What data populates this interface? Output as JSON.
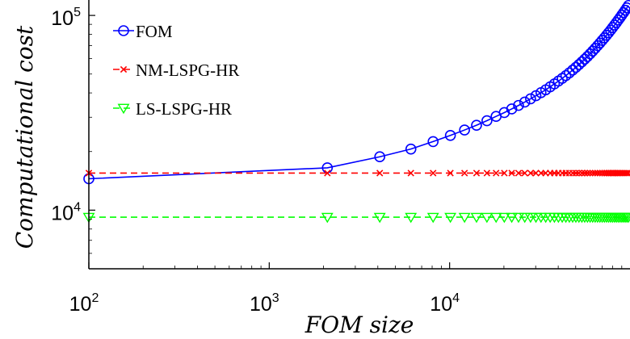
{
  "chart_data": {
    "type": "line",
    "xlabel": "FOM size",
    "ylabel": "Computational cost",
    "xscale": "log",
    "yscale": "log",
    "xlim": [
      100,
      100000
    ],
    "ylim": [
      5000,
      120000
    ],
    "x_ticks": [
      {
        "value": 100,
        "base": "10",
        "exp": "2"
      },
      {
        "value": 1000,
        "base": "10",
        "exp": "3"
      },
      {
        "value": 10000,
        "base": "10",
        "exp": "4"
      }
    ],
    "y_ticks": [
      {
        "value": 10000,
        "base": "10",
        "exp": "4"
      },
      {
        "value": 100000,
        "base": "10",
        "exp": "5"
      }
    ],
    "legend_position": "top-left",
    "series": [
      {
        "name": "FOM",
        "color": "#0000ff",
        "line": "solid",
        "marker": "circle",
        "x": [
          100,
          2100,
          4100,
          6100,
          8100,
          10100,
          12100,
          14100,
          16100,
          18100,
          20100,
          22100,
          24100,
          26100,
          28100,
          30100,
          32100,
          34100,
          36100,
          38100,
          40100,
          42100,
          44100,
          46100,
          48100,
          50100,
          52100,
          54100,
          56100,
          58100,
          60100,
          62100,
          64100,
          66100,
          68100,
          70100,
          72100,
          74100,
          76100,
          78100,
          80100,
          82100,
          84100,
          86100,
          88100,
          90100,
          92100,
          94100,
          96100,
          98100
        ],
        "y": [
          14500,
          16500,
          18800,
          20600,
          22500,
          24200,
          25800,
          27300,
          28800,
          30300,
          31700,
          33100,
          34500,
          35900,
          37300,
          38700,
          40100,
          41500,
          43000,
          44500,
          46000,
          47500,
          49100,
          50700,
          52400,
          54100,
          55900,
          57700,
          59600,
          61500,
          63500,
          65600,
          67700,
          69900,
          72100,
          74400,
          76700,
          79100,
          81500,
          84000,
          86600,
          89200,
          91900,
          94700,
          97500,
          100400,
          103300,
          106300,
          109400,
          112500
        ]
      },
      {
        "name": "NM-LSPG-HR",
        "color": "#ff0000",
        "line": "dashed",
        "marker": "x",
        "x": [
          100,
          2100,
          4100,
          6100,
          8100,
          10100,
          12100,
          14100,
          16100,
          18100,
          20100,
          22100,
          24100,
          26100,
          28100,
          30100,
          32100,
          34100,
          36100,
          38100,
          40100,
          42100,
          44100,
          46100,
          48100,
          50100,
          52100,
          54100,
          56100,
          58100,
          60100,
          62100,
          64100,
          66100,
          68100,
          70100,
          72100,
          74100,
          76100,
          78100,
          80100,
          82100,
          84100,
          86100,
          88100,
          90100,
          92100,
          94100,
          96100,
          98100
        ],
        "y": [
          15500,
          15500,
          15500,
          15500,
          15500,
          15500,
          15500,
          15500,
          15500,
          15500,
          15500,
          15500,
          15500,
          15500,
          15500,
          15500,
          15500,
          15500,
          15500,
          15500,
          15500,
          15500,
          15500,
          15500,
          15500,
          15500,
          15500,
          15500,
          15500,
          15500,
          15500,
          15500,
          15500,
          15500,
          15500,
          15500,
          15500,
          15500,
          15500,
          15500,
          15500,
          15500,
          15500,
          15500,
          15500,
          15500,
          15500,
          15500,
          15500,
          15500
        ]
      },
      {
        "name": "LS-LSPG-HR",
        "color": "#00ff00",
        "line": "dashed",
        "marker": "triangle-down",
        "x": [
          100,
          2100,
          4100,
          6100,
          8100,
          10100,
          12100,
          14100,
          16100,
          18100,
          20100,
          22100,
          24100,
          26100,
          28100,
          30100,
          32100,
          34100,
          36100,
          38100,
          40100,
          42100,
          44100,
          46100,
          48100,
          50100,
          52100,
          54100,
          56100,
          58100,
          60100,
          62100,
          64100,
          66100,
          68100,
          70100,
          72100,
          74100,
          76100,
          78100,
          80100,
          82100,
          84100,
          86100,
          88100,
          90100,
          92100,
          94100,
          96100,
          98100
        ],
        "y": [
          9200,
          9200,
          9200,
          9200,
          9200,
          9200,
          9200,
          9200,
          9200,
          9200,
          9200,
          9200,
          9200,
          9200,
          9200,
          9200,
          9200,
          9200,
          9200,
          9200,
          9200,
          9200,
          9200,
          9200,
          9200,
          9200,
          9200,
          9200,
          9200,
          9200,
          9200,
          9200,
          9200,
          9200,
          9200,
          9200,
          9200,
          9200,
          9200,
          9200,
          9200,
          9200,
          9200,
          9200,
          9200,
          9200,
          9200,
          9200,
          9200,
          9200
        ]
      }
    ]
  }
}
